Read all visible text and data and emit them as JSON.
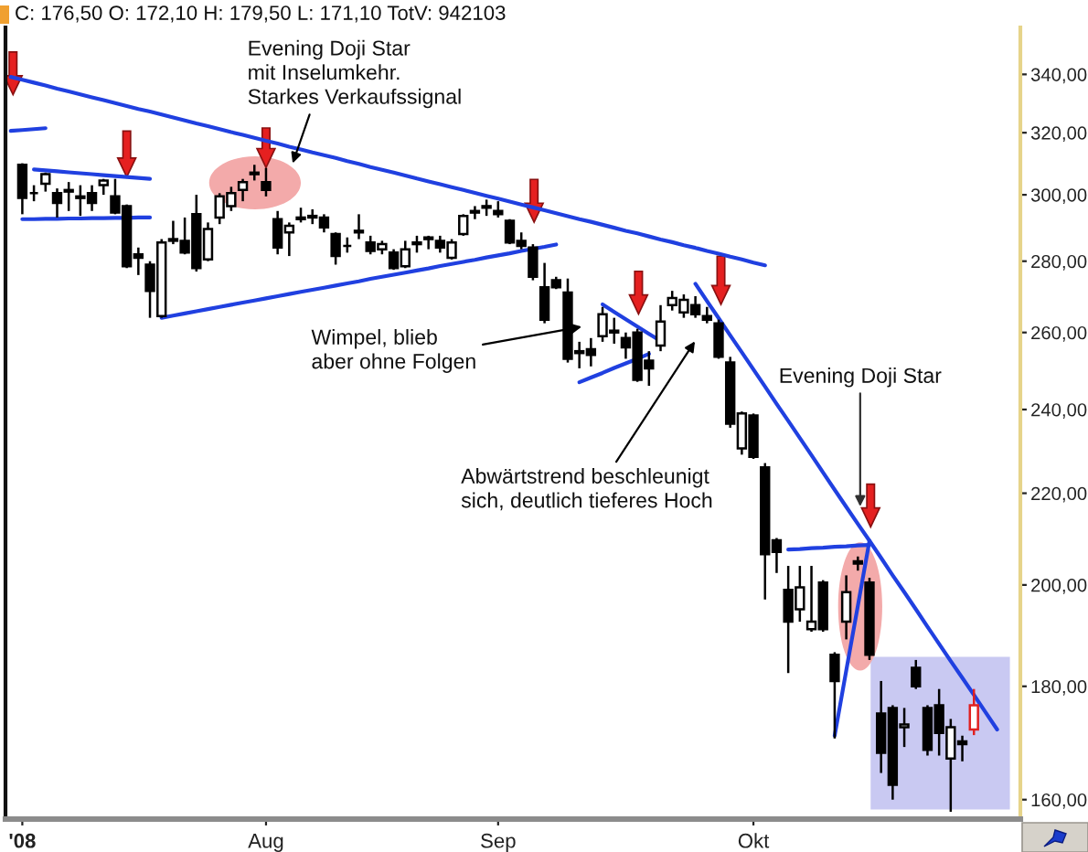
{
  "chart_data": {
    "type": "candlestick",
    "title": "C: 176,50 O: 172,10 H: 179,50 L: 171,10 TotV: 942103",
    "categories": [
      null,
      "'08",
      null,
      null,
      null,
      null,
      null,
      null,
      null,
      null,
      null,
      null,
      null,
      null,
      null,
      null,
      null,
      null,
      null,
      null,
      null,
      null,
      "Aug",
      null,
      null,
      null,
      null,
      null,
      null,
      null,
      null,
      null,
      null,
      null,
      null,
      null,
      null,
      null,
      null,
      null,
      null,
      null,
      "Sep",
      null,
      null,
      null,
      null,
      null,
      null,
      null,
      null,
      null,
      null,
      null,
      null,
      null,
      null,
      null,
      null,
      null,
      null,
      null,
      null,
      null,
      "Okt",
      null,
      null,
      null,
      null,
      null,
      null,
      null,
      null,
      null,
      null,
      null,
      null,
      null,
      null,
      null,
      null,
      null,
      null,
      null,
      null,
      null
    ],
    "ohlc": [
      null,
      [
        309.5,
        310,
        294,
        299
      ],
      [
        300.5,
        303,
        298,
        300.5
      ],
      [
        303.5,
        307,
        301,
        306.5
      ],
      [
        300.5,
        302,
        293,
        297.5
      ],
      [
        301.5,
        304,
        295,
        301
      ],
      [
        299,
        303,
        293.5,
        299.5
      ],
      [
        300.5,
        303,
        295,
        297.5
      ],
      [
        303,
        305,
        300,
        304.5
      ],
      [
        299.5,
        305,
        294,
        294.5
      ],
      [
        296.5,
        297,
        278,
        278.5
      ],
      [
        282,
        284,
        276,
        281
      ],
      [
        279,
        280,
        264,
        271.5
      ],
      [
        264.5,
        286.5,
        264,
        285.5
      ],
      [
        286.5,
        292,
        285,
        286
      ],
      [
        286,
        293,
        282,
        282.5
      ],
      [
        294,
        300,
        277,
        278
      ],
      [
        280.5,
        291.5,
        280,
        289.5
      ],
      [
        293,
        300.5,
        291,
        299.5
      ],
      [
        296.5,
        302.5,
        295,
        300.5
      ],
      [
        301.5,
        305,
        298,
        304
      ],
      [
        306.5,
        309.5,
        304.5,
        307
      ],
      [
        304,
        308.5,
        299.5,
        301.5
      ],
      [
        292.5,
        295,
        282,
        284
      ],
      [
        288.5,
        291.5,
        281.5,
        290.5
      ],
      [
        292.5,
        296,
        291.5,
        293
      ],
      [
        293.5,
        295.5,
        291,
        293
      ],
      [
        293,
        294,
        288.5,
        290
      ],
      [
        288,
        288.5,
        279,
        281.5
      ],
      [
        284.5,
        287,
        282.5,
        284.5
      ],
      [
        288.5,
        294,
        286.5,
        289
      ],
      [
        285.5,
        287.5,
        282,
        283
      ],
      [
        283.5,
        286,
        282,
        285
      ],
      [
        282.5,
        283.5,
        277.5,
        278
      ],
      [
        278.5,
        286,
        278,
        283.5
      ],
      [
        285.5,
        287.5,
        282.5,
        285
      ],
      [
        287,
        287.5,
        283.5,
        286.5
      ],
      [
        286,
        287.5,
        282.5,
        284
      ],
      [
        281,
        286.5,
        280.5,
        285.5
      ],
      [
        288,
        294,
        287.5,
        293.5
      ],
      [
        294.5,
        296.5,
        292.5,
        295
      ],
      [
        296,
        298.5,
        293.5,
        296.5
      ],
      [
        295,
        298,
        293,
        294
      ],
      [
        292,
        292.5,
        285,
        285.5
      ],
      [
        286,
        288.5,
        283.5,
        284.5
      ],
      [
        284,
        285,
        274.5,
        275.5
      ],
      [
        272.5,
        279.5,
        262.5,
        263.5
      ],
      [
        274.5,
        275.5,
        272,
        272.5
      ],
      [
        271,
        275,
        252,
        253
      ],
      [
        254.5,
        257.5,
        250.5,
        255
      ],
      [
        255.5,
        258.5,
        251,
        254
      ],
      [
        259,
        267,
        257.5,
        265
      ],
      [
        260,
        264,
        257,
        260.5
      ],
      [
        258.5,
        260,
        253,
        256
      ],
      [
        260,
        261,
        247,
        247.5
      ],
      [
        252.5,
        255,
        246,
        250.5
      ],
      [
        256.5,
        267.5,
        255,
        263
      ],
      [
        267.5,
        271.5,
        266,
        269.5
      ],
      [
        265.5,
        270.5,
        264,
        269
      ],
      [
        267.5,
        270,
        264,
        265
      ],
      [
        264.5,
        267,
        262.5,
        263.5
      ],
      [
        262.5,
        263.5,
        253,
        253.5
      ],
      [
        252,
        253.5,
        235.5,
        236.5
      ],
      [
        230.5,
        239.5,
        229,
        239
      ],
      [
        238.5,
        239,
        228,
        228.5
      ],
      [
        226,
        227,
        197,
        206.5
      ],
      [
        209.5,
        210,
        202.5,
        207
      ],
      [
        199,
        204,
        182.5,
        192.5
      ],
      [
        195,
        204,
        192.5,
        199.5
      ],
      [
        191,
        204,
        190.5,
        192.5
      ],
      [
        200.5,
        201,
        190.5,
        191
      ],
      [
        186,
        186.5,
        170.5,
        181
      ],
      [
        192.5,
        202,
        189,
        198.5
      ],
      [
        205,
        206,
        203,
        204.5
      ],
      [
        200.5,
        201.5,
        185,
        186
      ],
      [
        175,
        181,
        164.5,
        168
      ],
      [
        176,
        176.5,
        160,
        162.5
      ],
      [
        172.5,
        176,
        169,
        173
      ],
      [
        183.5,
        185,
        179.5,
        180
      ],
      [
        176,
        176.5,
        167.5,
        168.5
      ],
      [
        176.5,
        179.5,
        167.5,
        171.5
      ],
      [
        167,
        174,
        158,
        172.5
      ],
      [
        170,
        171,
        166.5,
        169.5
      ],
      [
        172.1,
        179.5,
        171.1,
        176.5
      ],
      null,
      null
    ],
    "colors": [
      null,
      "#000000",
      "#000000",
      "#000000",
      "#000000",
      "#000000",
      "#000000",
      "#000000",
      "#000000",
      "#000000",
      "#000000",
      "#000000",
      "#000000",
      "#000000",
      "#000000",
      "#000000",
      "#000000",
      "#000000",
      "#000000",
      "#000000",
      "#000000",
      "#000000",
      "#000000",
      "#000000",
      "#000000",
      "#000000",
      "#000000",
      "#000000",
      "#000000",
      "#000000",
      "#000000",
      "#000000",
      "#000000",
      "#000000",
      "#000000",
      "#000000",
      "#000000",
      "#000000",
      "#000000",
      "#000000",
      "#000000",
      "#000000",
      "#000000",
      "#000000",
      "#000000",
      "#000000",
      "#000000",
      "#000000",
      "#000000",
      "#000000",
      "#000000",
      "#000000",
      "#000000",
      "#000000",
      "#000000",
      "#000000",
      "#000000",
      "#000000",
      "#000000",
      "#000000",
      "#000000",
      "#000000",
      "#000000",
      "#000000",
      "#000000",
      "#000000",
      "#000000",
      "#000000",
      "#000000",
      "#000000",
      "#000000",
      "#000000",
      "#000000",
      "#000000",
      "#000000",
      "#000000",
      "#000000",
      "#000000",
      "#000000",
      "#000000",
      "#000000",
      "#000000",
      "#000000",
      "#e02020",
      null,
      null
    ],
    "series": [
      {
        "type": "line",
        "color": "#2040e0",
        "values": [
          339.1,
          338.1,
          337.1,
          336.1,
          335.0,
          334.0,
          333.0,
          332.0,
          331.0,
          330.0,
          329.0,
          328.0,
          327.1,
          326.1,
          325.1,
          324.1,
          323.1,
          322.2,
          321.2,
          320.2,
          319.3,
          318.3,
          317.3,
          316.4,
          315.4,
          314.5,
          313.5,
          312.6,
          311.7,
          310.7,
          309.8,
          308.8,
          307.9,
          307.0,
          306.1,
          305.1,
          304.2,
          303.3,
          302.4,
          301.5,
          300.6,
          299.7,
          298.8,
          297.9,
          297.0,
          296.1,
          295.2,
          294.3,
          293.4,
          292.5,
          291.7,
          290.8,
          289.9,
          289.0,
          288.2,
          287.3,
          286.4,
          285.6,
          284.7,
          283.9,
          283.0,
          282.2,
          281.3,
          280.5,
          279.6,
          278.8,
          null,
          null,
          null,
          null,
          null,
          null,
          null,
          null,
          null,
          null,
          null,
          null,
          null,
          null,
          null,
          null,
          null,
          null,
          null,
          null
        ]
      },
      {
        "type": "line",
        "color": "#2040e0",
        "values": [
          320.6,
          320.9,
          321.2,
          321.5,
          null,
          null,
          null,
          null,
          null,
          null,
          null,
          null,
          null,
          null,
          null,
          null,
          null,
          null,
          null,
          null,
          null,
          null,
          null,
          null,
          null,
          null,
          null,
          null,
          null,
          null,
          null,
          null,
          null,
          null,
          null,
          null,
          null,
          null,
          null,
          null,
          null,
          null,
          null,
          null,
          null,
          null,
          null,
          null,
          null,
          null,
          null,
          null,
          null,
          null,
          null,
          null,
          null,
          null,
          null,
          null,
          null,
          null,
          null,
          null,
          null,
          null,
          null,
          null,
          null,
          null,
          null,
          null,
          null,
          null,
          null,
          null,
          null,
          null,
          null,
          null,
          null,
          null,
          null,
          null,
          null,
          null
        ]
      },
      {
        "type": "line",
        "color": "#2040e0",
        "values": [
          null,
          null,
          308.0,
          307.7,
          307.4,
          307.1,
          306.8,
          306.5,
          306.2,
          305.9,
          305.6,
          305.3,
          305.0,
          null,
          null,
          null,
          null,
          null,
          null,
          null,
          null,
          null,
          null,
          null,
          null,
          null,
          null,
          null,
          null,
          null,
          null,
          null,
          null,
          null,
          null,
          null,
          null,
          null,
          null,
          null,
          null,
          null,
          null,
          null,
          null,
          null,
          null,
          null,
          null,
          null,
          null,
          null,
          null,
          null,
          null,
          null,
          null,
          null,
          null,
          null,
          null,
          null,
          null,
          null,
          null,
          null,
          null,
          null,
          null,
          null,
          null,
          null,
          null,
          null,
          null,
          null,
          null,
          null,
          null,
          null,
          null,
          null,
          null,
          null,
          null,
          null
        ]
      },
      {
        "type": "line",
        "color": "#2040e0",
        "values": [
          null,
          292.5,
          292.5,
          292.6,
          292.6,
          292.7,
          292.7,
          292.8,
          292.8,
          292.9,
          292.9,
          293.0,
          293.0,
          null,
          null,
          null,
          null,
          null,
          null,
          null,
          null,
          null,
          null,
          null,
          null,
          null,
          null,
          null,
          null,
          null,
          null,
          null,
          null,
          null,
          null,
          null,
          null,
          null,
          null,
          null,
          null,
          null,
          null,
          null,
          null,
          null,
          null,
          null,
          null,
          null,
          null,
          null,
          null,
          null,
          null,
          null,
          null,
          null,
          null,
          null,
          null,
          null,
          null,
          null,
          null,
          null,
          null,
          null,
          null,
          null,
          null,
          null,
          null,
          null,
          null,
          null,
          null,
          null,
          null,
          null,
          null,
          null,
          null,
          null,
          null,
          null
        ]
      },
      {
        "type": "line",
        "color": "#2040e0",
        "values": [
          null,
          null,
          null,
          null,
          null,
          null,
          null,
          null,
          null,
          null,
          null,
          null,
          null,
          264.0,
          264.6,
          265.2,
          265.8,
          266.4,
          267.0,
          267.6,
          268.2,
          268.8,
          269.4,
          270.0,
          270.6,
          271.2,
          271.8,
          272.4,
          273.0,
          273.6,
          274.2,
          274.9,
          275.5,
          276.1,
          276.7,
          277.3,
          277.9,
          278.6,
          279.2,
          279.8,
          280.4,
          281.1,
          281.7,
          282.3,
          283.0,
          283.6,
          284.2,
          284.9,
          null,
          null,
          null,
          null,
          null,
          null,
          null,
          null,
          null,
          null,
          null,
          null,
          null,
          null,
          null,
          null,
          null,
          null,
          null,
          null,
          null,
          null,
          null,
          null,
          null,
          null,
          null,
          null,
          null,
          null,
          null,
          null,
          null,
          null,
          null,
          null,
          null,
          null
        ]
      },
      {
        "type": "line",
        "color": "#2040e0",
        "values": [
          null,
          null,
          null,
          null,
          null,
          null,
          null,
          null,
          null,
          null,
          null,
          null,
          null,
          null,
          null,
          null,
          null,
          null,
          null,
          null,
          null,
          null,
          null,
          null,
          null,
          null,
          null,
          null,
          null,
          null,
          null,
          null,
          null,
          null,
          null,
          null,
          null,
          null,
          null,
          null,
          null,
          null,
          null,
          null,
          null,
          null,
          null,
          null,
          null,
          null,
          null,
          267.7,
          265.6,
          263.6,
          261.6,
          259.6,
          257.7,
          null,
          null,
          null,
          null,
          null,
          null,
          null,
          null,
          null,
          null,
          null,
          null,
          null,
          null,
          null,
          null,
          null,
          null,
          null,
          null,
          null,
          null,
          null,
          null,
          null,
          null,
          null,
          null,
          null
        ]
      },
      {
        "type": "line",
        "color": "#2040e0",
        "values": [
          null,
          null,
          null,
          null,
          null,
          null,
          null,
          null,
          null,
          null,
          null,
          null,
          null,
          null,
          null,
          null,
          null,
          null,
          null,
          null,
          null,
          null,
          null,
          null,
          null,
          null,
          null,
          null,
          null,
          null,
          null,
          null,
          null,
          null,
          null,
          null,
          null,
          null,
          null,
          null,
          null,
          null,
          null,
          null,
          null,
          null,
          null,
          null,
          null,
          246.9,
          248.1,
          249.3,
          250.6,
          251.8,
          253.0,
          254.3,
          null,
          null,
          null,
          null,
          null,
          null,
          null,
          null,
          null,
          null,
          null,
          null,
          null,
          null,
          null,
          null,
          null,
          null,
          null,
          null,
          null,
          null,
          null,
          null,
          null,
          null,
          null,
          null,
          null,
          null
        ]
      },
      {
        "type": "line",
        "color": "#2040e0",
        "values": [
          null,
          null,
          null,
          null,
          null,
          null,
          null,
          null,
          null,
          null,
          null,
          null,
          null,
          null,
          null,
          null,
          null,
          null,
          null,
          null,
          null,
          null,
          null,
          null,
          null,
          null,
          null,
          null,
          null,
          null,
          null,
          null,
          null,
          null,
          null,
          null,
          null,
          null,
          null,
          null,
          null,
          null,
          null,
          null,
          null,
          null,
          null,
          null,
          null,
          null,
          null,
          null,
          null,
          null,
          null,
          null,
          null,
          null,
          null,
          273.5,
          268.6,
          263.9,
          259.2,
          254.7,
          250.2,
          245.8,
          241.4,
          237.2,
          233.0,
          228.9,
          224.8,
          220.8,
          216.9,
          213.1,
          209.4,
          205.7,
          202.0,
          198.5,
          195.0,
          191.5,
          188.1,
          184.8,
          181.6,
          178.4,
          175.2,
          172.1
        ]
      },
      {
        "type": "line",
        "color": "#2040e0",
        "values": [
          null,
          null,
          null,
          null,
          null,
          null,
          null,
          null,
          null,
          null,
          null,
          null,
          null,
          null,
          null,
          null,
          null,
          null,
          null,
          null,
          null,
          null,
          null,
          null,
          null,
          null,
          null,
          null,
          null,
          null,
          null,
          null,
          null,
          null,
          null,
          null,
          null,
          null,
          null,
          null,
          null,
          null,
          null,
          null,
          null,
          null,
          null,
          null,
          null,
          null,
          null,
          null,
          null,
          null,
          null,
          null,
          null,
          null,
          null,
          null,
          null,
          null,
          null,
          null,
          null,
          null,
          null,
          207.5,
          207.6,
          207.8,
          207.9,
          208.1,
          208.2,
          208.4,
          208.5,
          null,
          null,
          null,
          null,
          null,
          null,
          null,
          null,
          null,
          null,
          null
        ]
      },
      {
        "type": "line",
        "color": "#2040e0",
        "values": [
          null,
          null,
          null,
          null,
          null,
          null,
          null,
          null,
          null,
          null,
          null,
          null,
          null,
          null,
          null,
          null,
          null,
          null,
          null,
          null,
          null,
          null,
          null,
          null,
          null,
          null,
          null,
          null,
          null,
          null,
          null,
          null,
          null,
          null,
          null,
          null,
          null,
          null,
          null,
          null,
          null,
          null,
          null,
          null,
          null,
          null,
          null,
          null,
          null,
          null,
          null,
          null,
          null,
          null,
          null,
          null,
          null,
          null,
          null,
          null,
          null,
          null,
          null,
          null,
          null,
          null,
          null,
          null,
          null,
          null,
          null,
          171.0,
          183.0,
          195.7,
          209.4,
          null,
          null,
          null,
          null,
          null,
          null,
          null,
          null,
          null,
          null,
          null
        ]
      }
    ],
    "annotations": [
      "Evening Doji Star\nmit Inselumkehr.\nStarkes Verkaufssignal",
      "Wimpel, blieb\naber ohne Folgen",
      "Abwärtstrend beschleunigt\nsich, deutlich tieferes Hoch",
      "Evening Doji Star"
    ],
    "log": "y",
    "ylim": [
      156.8,
      357
    ],
    "yticks": [
      {
        "value": 160,
        "label": "160,00"
      },
      {
        "value": 180,
        "label": "180,00"
      },
      {
        "value": 200,
        "label": "200,00"
      },
      {
        "value": 220,
        "label": "220,00"
      },
      {
        "value": 240,
        "label": "240,00"
      },
      {
        "value": 260,
        "label": "260,00"
      },
      {
        "value": 280,
        "label": "280,00"
      },
      {
        "value": 300,
        "label": "300,00"
      },
      {
        "value": 320,
        "label": "320,00"
      },
      {
        "value": 340,
        "label": "340,00"
      }
    ]
  }
}
